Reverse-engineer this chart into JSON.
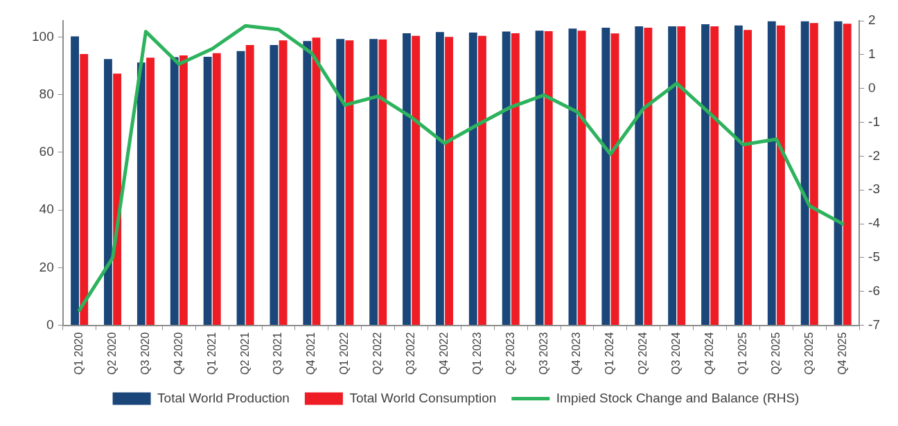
{
  "chart_data": {
    "type": "bar",
    "categories": [
      "Q1 2020",
      "Q2 2020",
      "Q3 2020",
      "Q4 2020",
      "Q1 2021",
      "Q2 2021",
      "Q3 2021",
      "Q4 2021",
      "Q1 2022",
      "Q2 2022",
      "Q3 2022",
      "Q4 2022",
      "Q1 2023",
      "Q2 2023",
      "Q3 2023",
      "Q4 2023",
      "Q1 2024",
      "Q2 2024",
      "Q3 2024",
      "Q4 2024",
      "Q1 2025",
      "Q2 2025",
      "Q3 2025",
      "Q4 2025"
    ],
    "series": [
      {
        "name": "Total World Production",
        "color": "#1a4679",
        "values": [
          100.2,
          92.3,
          91.1,
          93.0,
          93.1,
          95.1,
          97.2,
          98.6,
          99.3,
          99.3,
          101.3,
          101.7,
          101.5,
          101.9,
          102.2,
          102.9,
          103.2,
          103.7,
          103.7,
          104.4,
          104.0,
          105.4,
          105.4,
          105.4
        ]
      },
      {
        "name": "Total World Consumption",
        "color": "#ee1c25",
        "values": [
          94.1,
          87.3,
          92.8,
          93.6,
          94.4,
          97.2,
          98.8,
          99.8,
          98.8,
          99.1,
          100.4,
          100.0,
          100.4,
          101.3,
          102.0,
          102.2,
          101.2,
          103.2,
          103.7,
          103.7,
          102.4,
          104.0,
          104.8,
          104.6
        ]
      },
      {
        "name": "Impied Stock Change and Balance (RHS)",
        "type": "line",
        "axis": "y2",
        "color": "#2db35d",
        "values": [
          -6.55,
          -5.01,
          1.68,
          0.72,
          1.17,
          1.85,
          1.74,
          1.04,
          -0.49,
          -0.23,
          -0.85,
          -1.62,
          -1.07,
          -0.55,
          -0.2,
          -0.69,
          -1.94,
          -0.59,
          0.15,
          -0.74,
          -1.66,
          -1.5,
          -3.47,
          -4.0
        ]
      }
    ],
    "ylim": [
      0,
      105.6
    ],
    "yticks": [
      0,
      20,
      40,
      60,
      80,
      100
    ],
    "y2lim": [
      -7,
      2
    ],
    "y2ticks": [
      -7,
      -6,
      -5,
      -4,
      -3,
      -2,
      -1,
      0,
      1,
      2
    ],
    "grid": false,
    "legend": "bottom"
  }
}
